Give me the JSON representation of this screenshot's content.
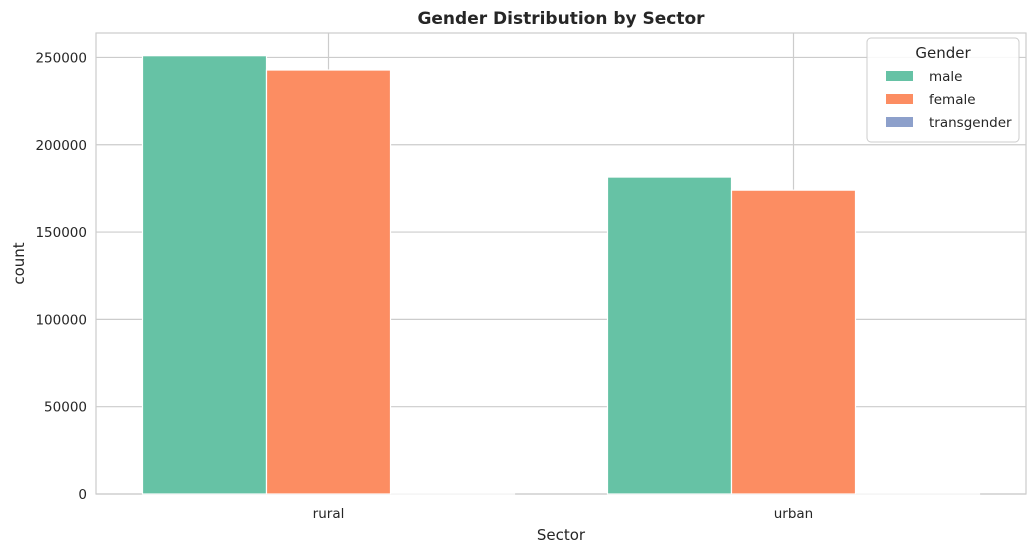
{
  "chart_data": {
    "type": "bar",
    "title": "Gender Distribution by Sector",
    "xlabel": "Sector",
    "ylabel": "count",
    "categories": [
      "rural",
      "urban"
    ],
    "series": [
      {
        "name": "male",
        "values": [
          251000,
          181500
        ],
        "color": "#66c2a5"
      },
      {
        "name": "female",
        "values": [
          242800,
          174000
        ],
        "color": "#fc8d62"
      },
      {
        "name": "transgender",
        "values": [
          40,
          30
        ],
        "color": "#8da0cb"
      }
    ],
    "ylim": [
      0,
      264000
    ],
    "yticks": [
      "0",
      "50000",
      "100000",
      "150000",
      "200000",
      "250000"
    ],
    "grid": true,
    "legend": {
      "title": "Gender",
      "position": "top-right"
    }
  }
}
